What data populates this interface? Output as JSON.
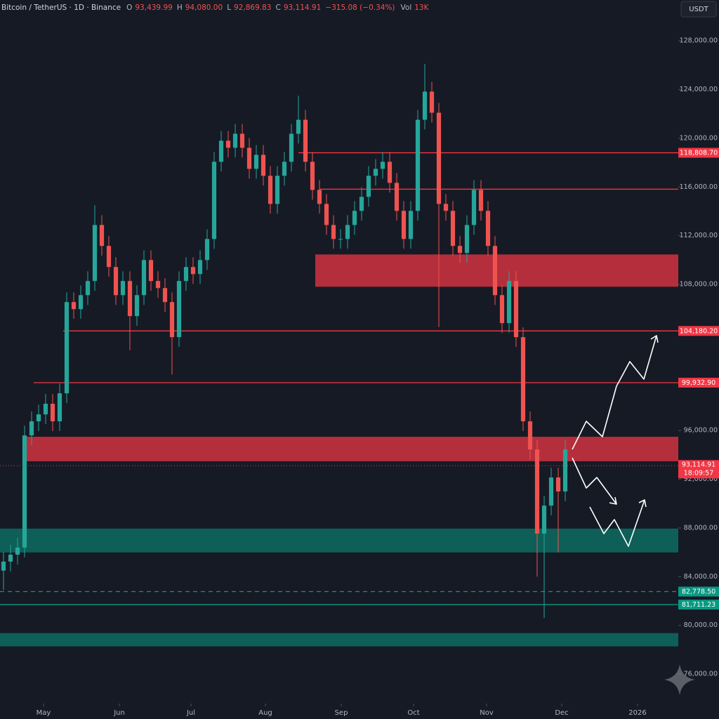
{
  "chart_data": {
    "type": "candlestick",
    "header": {
      "symbol": "Bitcoin / TetherUS · 1D · Binance",
      "ohlc": [
        {
          "key": "O",
          "value": "93,439.99"
        },
        {
          "key": "H",
          "value": "94,080.00"
        },
        {
          "key": "L",
          "value": "92,869.83"
        },
        {
          "key": "C",
          "value": "93,114.91"
        }
      ],
      "change": "−315.08 (−0.34%)",
      "volume_key": "Vol",
      "volume": "13K"
    },
    "currency": "USDT",
    "up_color": "#26a69a",
    "down_color": "#ef5350",
    "xlim": [
      -0.5,
      96.1
    ],
    "xticks": [
      {
        "value": 5.7,
        "label": "May"
      },
      {
        "value": 16.5,
        "label": "Jun"
      },
      {
        "value": 26.7,
        "label": "Jul"
      },
      {
        "value": 37.3,
        "label": "Aug"
      },
      {
        "value": 48.1,
        "label": "Sep"
      },
      {
        "value": 58.4,
        "label": "Oct"
      },
      {
        "value": 68.8,
        "label": "Nov"
      },
      {
        "value": 79.5,
        "label": "Dec"
      },
      {
        "value": 90.3,
        "label": "2026"
      }
    ],
    "ylim": [
      73700,
      130200
    ],
    "yticks": [
      {
        "value": 76000,
        "label": "76,000.00"
      },
      {
        "value": 80000,
        "label": "80,000.00"
      },
      {
        "value": 84000,
        "label": "84,000.00"
      },
      {
        "value": 88000,
        "label": "88,000.00"
      },
      {
        "value": 92000,
        "label": "92,000.00"
      },
      {
        "value": 96000,
        "label": "96,000.00"
      },
      {
        "value": 100000,
        "label": "100,000.00"
      },
      {
        "value": 104000,
        "label": "104,000.00"
      },
      {
        "value": 108000,
        "label": "108,000.00"
      },
      {
        "value": 112000,
        "label": "112,000.00"
      },
      {
        "value": 116000,
        "label": "116,000.00"
      },
      {
        "value": 120000,
        "label": "120,000.00"
      },
      {
        "value": 124000,
        "label": "124,000.00"
      },
      {
        "value": 128000,
        "label": "128,000.00"
      }
    ],
    "open": [
      84500,
      85240,
      85810,
      86390,
      95600,
      96760,
      97330,
      98200,
      96760,
      99060,
      106550,
      105970,
      107120,
      108280,
      112880,
      111160,
      109430,
      107120,
      108280,
      105400,
      107120,
      110000,
      108280,
      107700,
      106550,
      103670,
      108280,
      109430,
      108850,
      110000,
      111730,
      118070,
      119800,
      119220,
      120370,
      119220,
      117490,
      118640,
      116920,
      114610,
      116920,
      118070,
      120370,
      121520,
      118070,
      115760,
      114610,
      112880,
      111730,
      111730,
      112880,
      114040,
      115190,
      116920,
      117490,
      118070,
      116340,
      114040,
      111730,
      114040,
      121520,
      123830,
      122100,
      114610,
      114040,
      111160,
      110580,
      112880,
      115760,
      114040,
      111160,
      107120,
      104820,
      108280,
      103670,
      96760,
      94450,
      87540,
      89840,
      92150,
      91000
    ],
    "high": [
      86040,
      86610,
      87190,
      96400,
      97560,
      98130,
      99000,
      99000,
      99860,
      107350,
      107350,
      107920,
      109080,
      114500,
      113680,
      111960,
      110230,
      109080,
      109080,
      107920,
      110800,
      110800,
      109080,
      108500,
      107350,
      109080,
      110230,
      110230,
      110800,
      112530,
      118870,
      120600,
      120600,
      121170,
      121170,
      120020,
      119440,
      119440,
      117720,
      117720,
      118870,
      121170,
      123500,
      122320,
      118870,
      116560,
      115410,
      113680,
      112530,
      113680,
      114840,
      115990,
      117720,
      118290,
      118870,
      118870,
      117140,
      114840,
      114840,
      122320,
      126100,
      124630,
      122900,
      115410,
      114840,
      111960,
      113680,
      116560,
      116560,
      114840,
      111960,
      107920,
      109080,
      109080,
      104470,
      97560,
      95250,
      90640,
      92950,
      92950,
      95250
    ],
    "low": [
      82900,
      84440,
      85010,
      85590,
      94800,
      95960,
      96530,
      95960,
      95960,
      98260,
      105170,
      105170,
      106320,
      107480,
      110360,
      108630,
      106320,
      106320,
      102600,
      104600,
      106320,
      107480,
      106900,
      105750,
      100600,
      102870,
      107480,
      108050,
      108050,
      109200,
      110930,
      117270,
      118420,
      118420,
      118420,
      116690,
      116690,
      116120,
      113810,
      113810,
      116120,
      117270,
      119570,
      117270,
      114960,
      113810,
      112080,
      110930,
      110930,
      110930,
      112080,
      113240,
      114390,
      116120,
      116690,
      115540,
      113240,
      110930,
      110930,
      113240,
      120720,
      121300,
      104500,
      113240,
      110360,
      109780,
      109780,
      112080,
      113240,
      110360,
      106320,
      104020,
      104020,
      102870,
      95960,
      93650,
      84000,
      80600,
      89040,
      86000,
      90200
    ],
    "close": [
      85240,
      85810,
      86390,
      95600,
      96760,
      97330,
      98200,
      96760,
      99060,
      106550,
      105970,
      107120,
      108280,
      112880,
      111160,
      109430,
      107120,
      108280,
      105400,
      107120,
      110000,
      108280,
      107700,
      106550,
      103670,
      108280,
      109430,
      108850,
      110000,
      111730,
      118070,
      119800,
      119220,
      120370,
      119220,
      117490,
      118640,
      116920,
      114610,
      116920,
      118070,
      120370,
      121520,
      118070,
      115760,
      114610,
      112880,
      111730,
      111730,
      112880,
      114040,
      115190,
      116920,
      117490,
      118070,
      116340,
      114040,
      111730,
      114040,
      121520,
      123830,
      122100,
      114610,
      114040,
      111160,
      110580,
      112880,
      115760,
      114040,
      111160,
      107120,
      104820,
      108280,
      103670,
      96760,
      94450,
      87540,
      89840,
      92150,
      91000,
      94450
    ],
    "zones": [
      {
        "from": 107810,
        "to": 110460,
        "start": 44.4,
        "color": "#f23645"
      },
      {
        "from": 93480,
        "to": 95490,
        "start": 3,
        "color": "#f23645"
      },
      {
        "from": 85990,
        "to": 87950,
        "start": -0.5,
        "color": "#089981"
      },
      {
        "from": 78280,
        "to": 79370,
        "start": -0.5,
        "color": "#089981"
      }
    ],
    "levels": [
      {
        "value": 118808.7,
        "label": "118,808.70",
        "start": 42,
        "color": "#f23645",
        "style": "solid"
      },
      {
        "value": 115820,
        "start": 45,
        "color": "#f23645",
        "style": "solid"
      },
      {
        "value": 104180.2,
        "label": "104,180.20",
        "start": 8.5,
        "color": "#f23645",
        "style": "solid"
      },
      {
        "value": 99932.9,
        "label": "99,932.90",
        "start": 4.3,
        "color": "#f23645",
        "style": "solid"
      },
      {
        "value": 82778.5,
        "label": "82,778.50",
        "start": -0.5,
        "color": "#089981",
        "style": "dashed"
      },
      {
        "value": 81711.23,
        "label": "81,711.23",
        "start": -0.5,
        "color": "#089981",
        "style": "solid"
      }
    ],
    "last": {
      "value": 93114.91,
      "label": "93,114.91",
      "countdown": "18:09:57"
    }
  }
}
